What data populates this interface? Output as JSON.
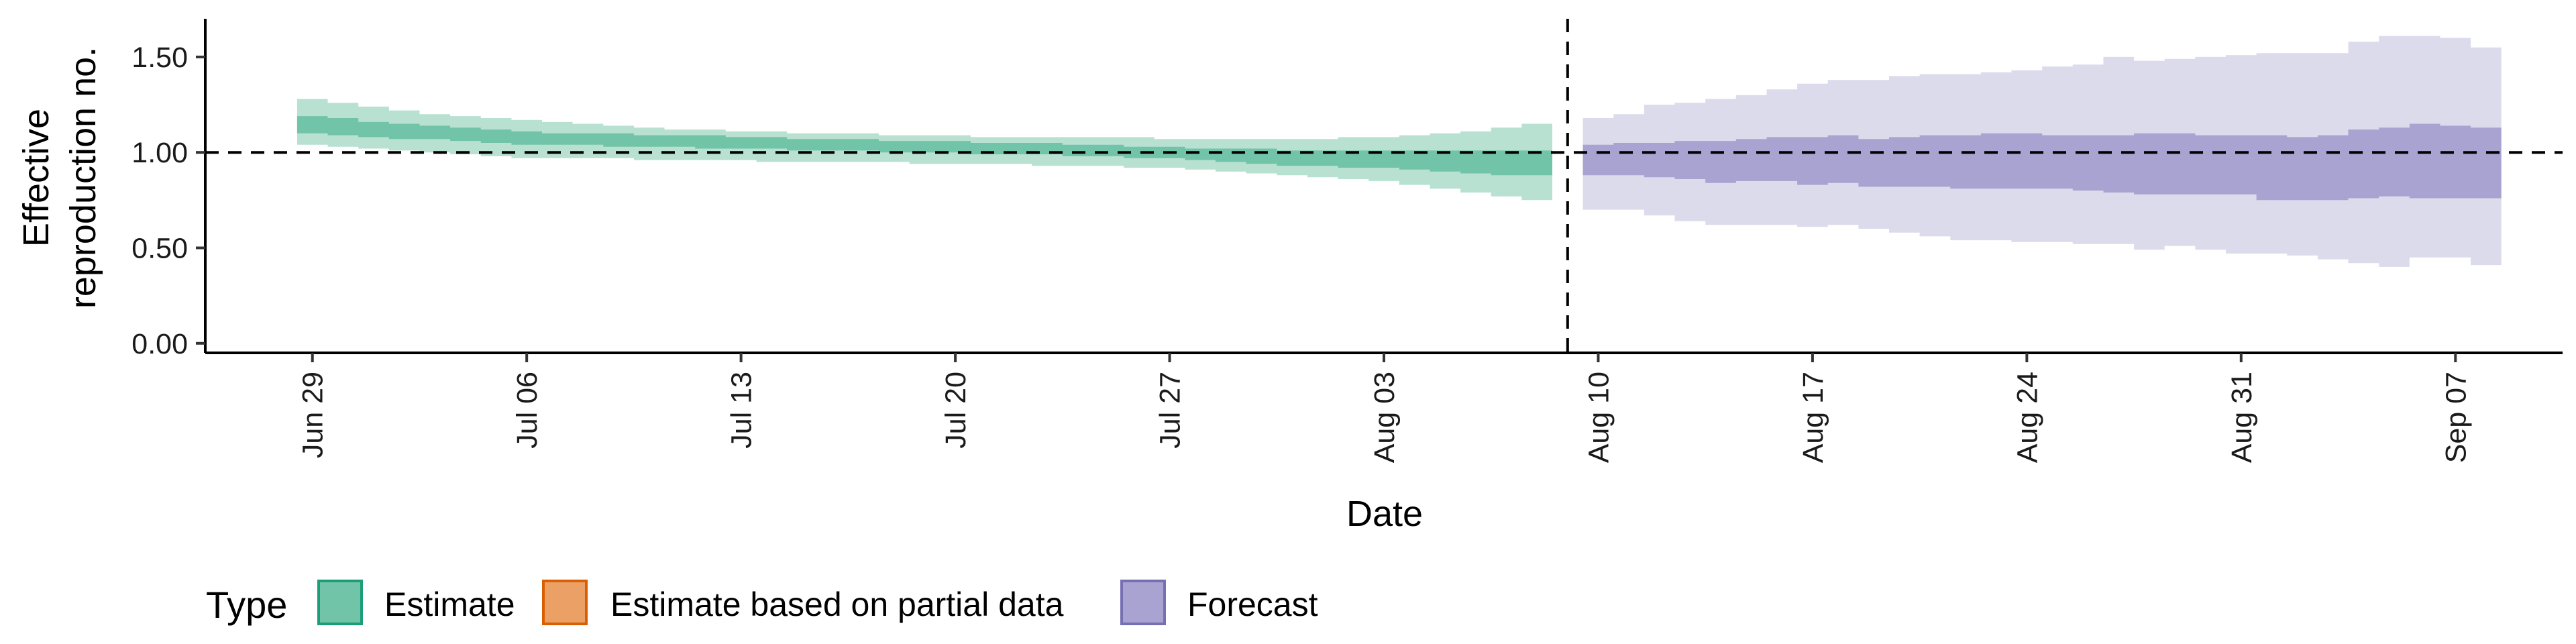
{
  "chart_data": {
    "type": "area",
    "title": "",
    "xlabel": "Date",
    "ylabel_lines": [
      "Effective",
      "reproduction no."
    ],
    "reference_y": 1.0,
    "ylim": [
      -0.05,
      1.7
    ],
    "yticks": [
      0.0,
      0.5,
      1.0,
      1.5
    ],
    "ytick_labels": [
      "0.00",
      "0.50",
      "1.00",
      "1.50"
    ],
    "xlim": [
      "2020-06-26",
      "2020-09-11"
    ],
    "xticks": [
      "2020-06-29",
      "2020-07-06",
      "2020-07-13",
      "2020-07-20",
      "2020-07-27",
      "2020-08-03",
      "2020-08-10",
      "2020-08-17",
      "2020-08-24",
      "2020-08-31",
      "2020-09-07"
    ],
    "xtick_labels": [
      "Jun 29",
      "Jul 06",
      "Jul 13",
      "Jul 20",
      "Jul 27",
      "Aug 03",
      "Aug 10",
      "Aug 17",
      "Aug 24",
      "Aug 31",
      "Sep 07"
    ],
    "vline_x": "2020-08-09",
    "legend": {
      "title": "Type",
      "position": "bottom",
      "items": [
        {
          "label": "Estimate",
          "fill": "#72c4a8",
          "stroke": "#1b9e77"
        },
        {
          "label": "Estimate based on partial data",
          "fill": "#eba065",
          "stroke": "#d95f02"
        },
        {
          "label": "Forecast",
          "fill": "#a8a3d0",
          "stroke": "#7570b3"
        }
      ]
    },
    "series": [
      {
        "name": "Estimate",
        "color_outer": "#b8e1d2",
        "color_inner": "#72c4a8",
        "x": [
          "2020-06-29",
          "2020-06-30",
          "2020-07-01",
          "2020-07-02",
          "2020-07-03",
          "2020-07-04",
          "2020-07-05",
          "2020-07-06",
          "2020-07-07",
          "2020-07-08",
          "2020-07-09",
          "2020-07-10",
          "2020-07-11",
          "2020-07-12",
          "2020-07-13",
          "2020-07-14",
          "2020-07-15",
          "2020-07-16",
          "2020-07-17",
          "2020-07-18",
          "2020-07-19",
          "2020-07-20",
          "2020-07-21",
          "2020-07-22",
          "2020-07-23",
          "2020-07-24",
          "2020-07-25",
          "2020-07-26",
          "2020-07-27",
          "2020-07-28",
          "2020-07-29",
          "2020-07-30",
          "2020-07-31",
          "2020-08-01",
          "2020-08-02",
          "2020-08-03",
          "2020-08-04",
          "2020-08-05",
          "2020-08-06",
          "2020-08-07",
          "2020-08-08"
        ],
        "lower_90": [
          1.04,
          1.03,
          1.02,
          1.01,
          1.0,
          0.99,
          0.98,
          0.97,
          0.97,
          0.97,
          0.97,
          0.96,
          0.96,
          0.96,
          0.96,
          0.95,
          0.95,
          0.95,
          0.95,
          0.95,
          0.94,
          0.94,
          0.94,
          0.94,
          0.93,
          0.93,
          0.93,
          0.92,
          0.92,
          0.91,
          0.9,
          0.89,
          0.88,
          0.87,
          0.86,
          0.85,
          0.83,
          0.81,
          0.79,
          0.77,
          0.75
        ],
        "upper_90": [
          1.28,
          1.26,
          1.24,
          1.22,
          1.2,
          1.19,
          1.18,
          1.17,
          1.16,
          1.15,
          1.14,
          1.13,
          1.12,
          1.12,
          1.11,
          1.11,
          1.1,
          1.1,
          1.1,
          1.09,
          1.09,
          1.09,
          1.08,
          1.08,
          1.08,
          1.08,
          1.08,
          1.08,
          1.07,
          1.07,
          1.07,
          1.07,
          1.07,
          1.07,
          1.08,
          1.08,
          1.09,
          1.1,
          1.11,
          1.13,
          1.15
        ],
        "lower_50": [
          1.1,
          1.09,
          1.08,
          1.07,
          1.07,
          1.06,
          1.05,
          1.04,
          1.04,
          1.04,
          1.03,
          1.03,
          1.03,
          1.02,
          1.02,
          1.02,
          1.01,
          1.01,
          1.01,
          1.0,
          1.0,
          1.0,
          0.99,
          0.99,
          0.99,
          0.98,
          0.98,
          0.97,
          0.97,
          0.96,
          0.95,
          0.94,
          0.93,
          0.93,
          0.92,
          0.92,
          0.91,
          0.9,
          0.89,
          0.88,
          0.88
        ],
        "upper_50": [
          1.19,
          1.18,
          1.16,
          1.15,
          1.14,
          1.13,
          1.12,
          1.11,
          1.1,
          1.1,
          1.1,
          1.09,
          1.09,
          1.09,
          1.08,
          1.08,
          1.07,
          1.07,
          1.07,
          1.06,
          1.06,
          1.06,
          1.05,
          1.05,
          1.05,
          1.04,
          1.04,
          1.03,
          1.03,
          1.02,
          1.02,
          1.02,
          1.01,
          1.01,
          1.01,
          1.01,
          1.01,
          1.01,
          1.01,
          1.01,
          1.01
        ]
      },
      {
        "name": "Forecast",
        "color_outer": "#dcdbec",
        "color_inner": "#a8a3d0",
        "x": [
          "2020-08-10",
          "2020-08-11",
          "2020-08-12",
          "2020-08-13",
          "2020-08-14",
          "2020-08-15",
          "2020-08-16",
          "2020-08-17",
          "2020-08-18",
          "2020-08-19",
          "2020-08-20",
          "2020-08-21",
          "2020-08-22",
          "2020-08-23",
          "2020-08-24",
          "2020-08-25",
          "2020-08-26",
          "2020-08-27",
          "2020-08-28",
          "2020-08-29",
          "2020-08-30",
          "2020-08-31",
          "2020-09-01",
          "2020-09-02",
          "2020-09-03",
          "2020-09-04",
          "2020-09-05",
          "2020-09-06",
          "2020-09-07",
          "2020-09-08"
        ],
        "lower_90": [
          0.7,
          0.7,
          0.67,
          0.64,
          0.62,
          0.62,
          0.62,
          0.61,
          0.62,
          0.6,
          0.58,
          0.56,
          0.54,
          0.54,
          0.53,
          0.53,
          0.52,
          0.52,
          0.49,
          0.51,
          0.49,
          0.47,
          0.47,
          0.46,
          0.44,
          0.42,
          0.4,
          0.45,
          0.45,
          0.41
        ],
        "upper_90": [
          1.18,
          1.2,
          1.25,
          1.26,
          1.28,
          1.3,
          1.33,
          1.36,
          1.38,
          1.38,
          1.4,
          1.41,
          1.41,
          1.42,
          1.43,
          1.45,
          1.46,
          1.5,
          1.48,
          1.49,
          1.5,
          1.51,
          1.52,
          1.52,
          1.52,
          1.58,
          1.61,
          1.61,
          1.6,
          1.55
        ],
        "lower_50": [
          0.88,
          0.88,
          0.87,
          0.86,
          0.84,
          0.85,
          0.85,
          0.83,
          0.84,
          0.82,
          0.82,
          0.82,
          0.81,
          0.81,
          0.81,
          0.81,
          0.8,
          0.79,
          0.78,
          0.78,
          0.78,
          0.78,
          0.75,
          0.75,
          0.75,
          0.76,
          0.77,
          0.76,
          0.76,
          0.76
        ],
        "upper_50": [
          1.04,
          1.05,
          1.05,
          1.06,
          1.06,
          1.07,
          1.08,
          1.08,
          1.09,
          1.07,
          1.08,
          1.09,
          1.09,
          1.1,
          1.1,
          1.09,
          1.09,
          1.09,
          1.1,
          1.1,
          1.09,
          1.09,
          1.09,
          1.08,
          1.09,
          1.12,
          1.13,
          1.15,
          1.14,
          1.13
        ]
      }
    ]
  }
}
